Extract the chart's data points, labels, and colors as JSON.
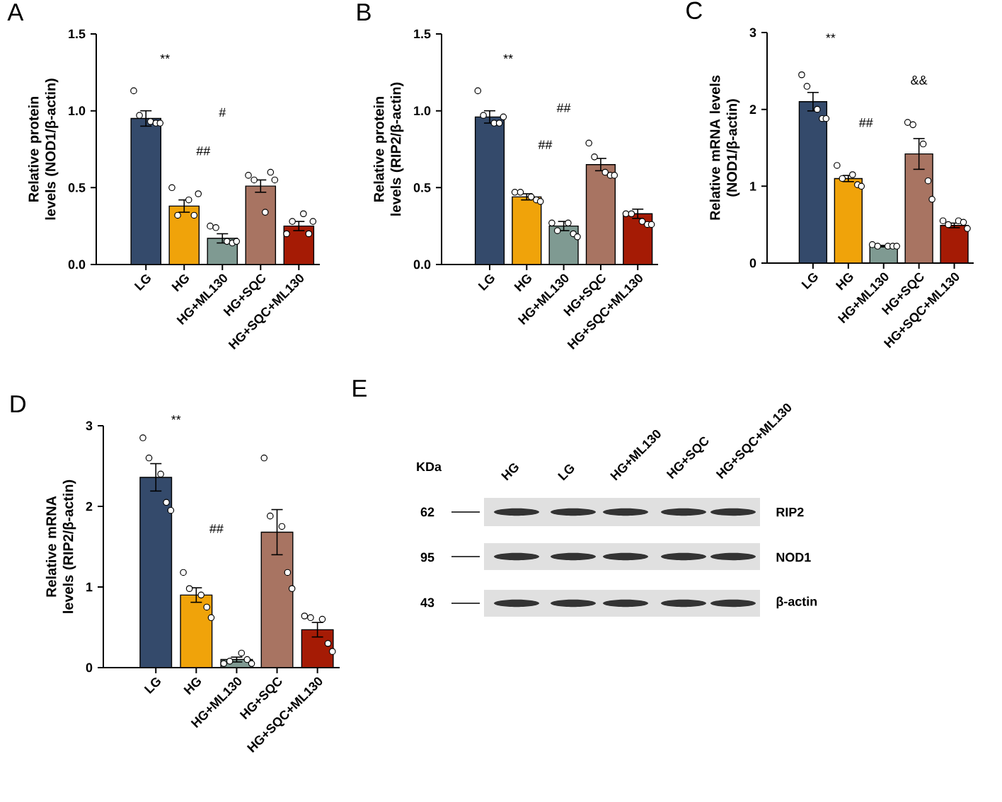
{
  "chart_data": [
    {
      "type": "bar",
      "title": "A",
      "ylabel": "Relative protein levels (NOD1/β-actin)",
      "categories": [
        "LG",
        "HG",
        "HG+ML130",
        "HG+SQC",
        "HG+SQC+ML130"
      ],
      "ylim": [
        0,
        1.5
      ],
      "yticks": [
        {
          "value": 0,
          "label": "0.0"
        },
        {
          "value": 0.5,
          "label": "0.5"
        },
        {
          "value": 1,
          "label": "1.0"
        },
        {
          "value": 1.5,
          "label": "1.5"
        }
      ],
      "marker": "circle",
      "series": [
        {
          "type": "bar",
          "values": [
            0.95,
            0.38,
            0.17,
            0.51,
            0.25
          ],
          "errors": [
            0.05,
            0.04,
            0.03,
            0.04,
            0.03
          ],
          "colors": [
            "#344a6b",
            "#f0a30a",
            "#7f9a92",
            "#a87462",
            "#a51b05"
          ]
        },
        {
          "type": "scatter",
          "color": "#ffffff",
          "x": [
            "LG",
            "LG",
            "LG",
            "LG",
            "LG",
            "HG",
            "HG",
            "HG",
            "HG",
            "HG",
            "HG+ML130",
            "HG+ML130",
            "HG+ML130",
            "HG+ML130",
            "HG+ML130",
            "HG+SQC",
            "HG+SQC",
            "HG+SQC",
            "HG+SQC",
            "HG+SQC",
            "HG+SQC+ML130",
            "HG+SQC+ML130",
            "HG+SQC+ML130",
            "HG+SQC+ML130",
            "HG+SQC+ML130"
          ],
          "values": [
            1.13,
            0.97,
            0.93,
            0.92,
            0.92,
            0.5,
            0.32,
            0.42,
            0.32,
            0.46,
            0.25,
            0.24,
            0.15,
            0.14,
            0.15,
            0.58,
            0.55,
            0.34,
            0.6,
            0.55,
            0.2,
            0.28,
            0.33,
            0.2,
            0.28
          ]
        }
      ],
      "annotations": [
        "**",
        "##",
        "#"
      ]
    },
    {
      "type": "bar",
      "title": "B",
      "ylabel": "Relative protein levels (RIP2/β-actin)",
      "categories": [
        "LG",
        "HG",
        "HG+ML130",
        "HG+SQC",
        "HG+SQC+ML130"
      ],
      "ylim": [
        0,
        1.5
      ],
      "yticks": [
        {
          "value": 0,
          "label": "0.0"
        },
        {
          "value": 0.5,
          "label": "0.5"
        },
        {
          "value": 1,
          "label": "1.0"
        },
        {
          "value": 1.5,
          "label": "1.5"
        }
      ],
      "marker": "circle",
      "series": [
        {
          "type": "bar",
          "values": [
            0.96,
            0.44,
            0.25,
            0.65,
            0.33
          ],
          "errors": [
            0.04,
            0.02,
            0.03,
            0.04,
            0.03
          ],
          "colors": [
            "#344a6b",
            "#f0a30a",
            "#7f9a92",
            "#a87462",
            "#a51b05"
          ]
        },
        {
          "type": "scatter",
          "color": "#ffffff",
          "x": [
            "LG",
            "LG",
            "LG",
            "LG",
            "LG",
            "HG",
            "HG",
            "HG",
            "HG",
            "HG",
            "HG+ML130",
            "HG+ML130",
            "HG+ML130",
            "HG+ML130",
            "HG+ML130",
            "HG+SQC",
            "HG+SQC",
            "HG+SQC",
            "HG+SQC",
            "HG+SQC",
            "HG+SQC+ML130",
            "HG+SQC+ML130",
            "HG+SQC+ML130",
            "HG+SQC+ML130",
            "HG+SQC+ML130"
          ],
          "values": [
            1.13,
            0.97,
            0.92,
            0.92,
            0.96,
            0.47,
            0.47,
            0.44,
            0.42,
            0.41,
            0.27,
            0.22,
            0.27,
            0.2,
            0.18,
            0.79,
            0.7,
            0.6,
            0.58,
            0.58,
            0.33,
            0.33,
            0.28,
            0.26,
            0.26
          ]
        }
      ],
      "annotations": [
        "**",
        "##",
        "##"
      ]
    },
    {
      "type": "bar",
      "title": "C",
      "ylabel": "Relative mRNA levels (NOD1/β-actin)",
      "categories": [
        "LG",
        "HG",
        "HG+ML130",
        "HG+SQC",
        "HG+SQC+ML130"
      ],
      "ylim": [
        0,
        3
      ],
      "yticks": [
        0,
        1,
        2,
        3
      ],
      "marker": "circle",
      "series": [
        {
          "type": "bar",
          "values": [
            2.1,
            1.1,
            0.22,
            1.42,
            0.49
          ],
          "errors": [
            0.12,
            0.04,
            0.01,
            0.2,
            0.03
          ],
          "colors": [
            "#344a6b",
            "#f0a30a",
            "#7f9a92",
            "#a87462",
            "#a51b05"
          ]
        },
        {
          "type": "scatter",
          "color": "#ffffff",
          "x": [
            "LG",
            "LG",
            "LG",
            "LG",
            "LG",
            "HG",
            "HG",
            "HG",
            "HG",
            "HG",
            "HG+ML130",
            "HG+ML130",
            "HG+ML130",
            "HG+ML130",
            "HG+ML130",
            "HG+SQC",
            "HG+SQC",
            "HG+SQC",
            "HG+SQC",
            "HG+SQC",
            "HG+SQC+ML130",
            "HG+SQC+ML130",
            "HG+SQC+ML130",
            "HG+SQC+ML130",
            "HG+SQC+ML130"
          ],
          "values": [
            2.45,
            2.3,
            2.0,
            1.88,
            1.88,
            1.27,
            1.1,
            1.15,
            1.02,
            1.0,
            0.24,
            0.22,
            0.22,
            0.22,
            0.22,
            1.83,
            1.8,
            1.55,
            1.07,
            0.83,
            0.55,
            0.5,
            0.55,
            0.53,
            0.45
          ]
        }
      ],
      "annotations": [
        "**",
        "##",
        "&&"
      ]
    },
    {
      "type": "bar",
      "title": "D",
      "ylabel": "Relative mRNA levels (RIP2/β-actin)",
      "categories": [
        "LG",
        "HG",
        "HG+ML130",
        "HG+SQC",
        "HG+SQC+ML130"
      ],
      "ylim": [
        0,
        3
      ],
      "yticks": [
        0,
        1,
        2,
        3
      ],
      "marker": "circle",
      "series": [
        {
          "type": "bar",
          "values": [
            2.36,
            0.9,
            0.1,
            1.68,
            0.47
          ],
          "errors": [
            0.17,
            0.09,
            0.03,
            0.28,
            0.09
          ],
          "colors": [
            "#344a6b",
            "#f0a30a",
            "#7f9a92",
            "#a87462",
            "#a51b05"
          ]
        },
        {
          "type": "scatter",
          "color": "#ffffff",
          "x": [
            "LG",
            "LG",
            "LG",
            "LG",
            "LG",
            "HG",
            "HG",
            "HG",
            "HG",
            "HG",
            "HG+ML130",
            "HG+ML130",
            "HG+ML130",
            "HG+ML130",
            "HG+ML130",
            "HG+SQC",
            "HG+SQC",
            "HG+SQC",
            "HG+SQC",
            "HG+SQC",
            "HG+SQC+ML130",
            "HG+SQC+ML130",
            "HG+SQC+ML130",
            "HG+SQC+ML130",
            "HG+SQC+ML130"
          ],
          "values": [
            2.85,
            2.6,
            2.4,
            2.05,
            1.95,
            1.18,
            0.98,
            0.9,
            0.75,
            0.62,
            0.05,
            0.08,
            0.18,
            0.1,
            0.05,
            2.6,
            1.88,
            1.75,
            1.18,
            0.98,
            0.64,
            0.62,
            0.6,
            0.3,
            0.2
          ]
        }
      ],
      "annotations": [
        "**",
        "##"
      ]
    },
    {
      "type": "other",
      "title": "E",
      "annotations": [
        "KDa",
        "HG",
        "LG",
        "HG+ML130",
        "HG+SQC",
        "HG+SQC+ML130",
        "62",
        "95",
        "43",
        "RIP2",
        "NOD1",
        "β-actin"
      ]
    }
  ]
}
